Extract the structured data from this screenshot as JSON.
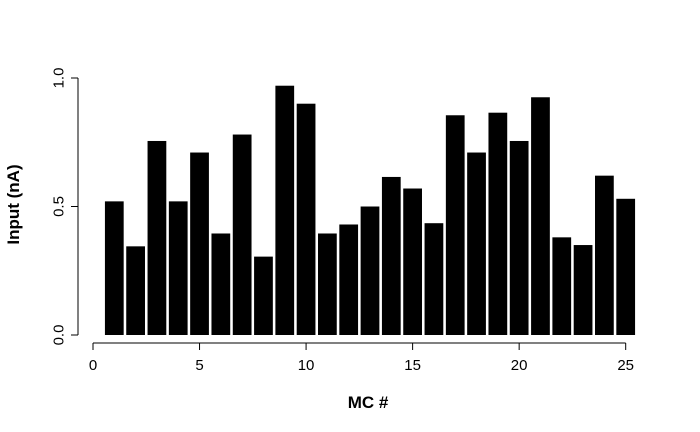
{
  "chart_data": {
    "type": "bar",
    "title": "",
    "xlabel": "MC #",
    "ylabel": "Input (nA)",
    "categories": [
      1,
      2,
      3,
      4,
      5,
      6,
      7,
      8,
      9,
      10,
      11,
      12,
      13,
      14,
      15,
      16,
      17,
      18,
      19,
      20,
      21,
      22,
      23,
      24,
      25
    ],
    "values": [
      0.52,
      0.345,
      0.755,
      0.52,
      0.71,
      0.395,
      0.78,
      0.305,
      0.97,
      0.9,
      0.395,
      0.43,
      0.5,
      0.615,
      0.57,
      0.435,
      0.855,
      0.71,
      0.865,
      0.755,
      0.925,
      0.38,
      0.35,
      0.62,
      0.53
    ],
    "xlim": [
      0,
      26
    ],
    "ylim": [
      0,
      1
    ],
    "x_ticks": [
      0,
      5,
      10,
      15,
      20,
      25
    ],
    "x_tick_labels": [
      "0",
      "5",
      "10",
      "15",
      "20",
      "25"
    ],
    "y_ticks": [
      0,
      0.5,
      1.0
    ],
    "y_tick_labels": [
      "0.0",
      "0.5",
      "1.0"
    ],
    "grid": false,
    "legend": "none",
    "bar_color": "#000000"
  }
}
